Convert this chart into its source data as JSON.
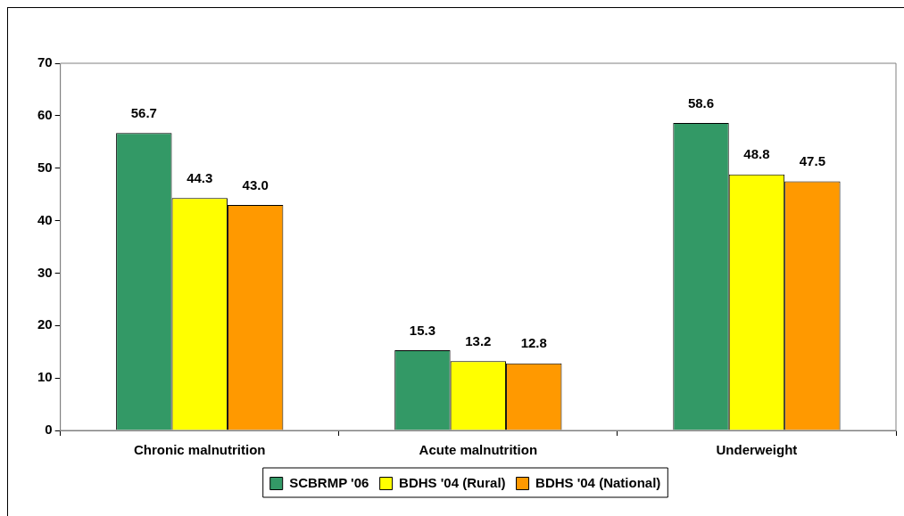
{
  "chart_data": {
    "type": "bar",
    "categories": [
      "Chronic malnutrition",
      "Acute malnutrition",
      "Underweight"
    ],
    "series": [
      {
        "name": "SCBRMP '06",
        "color": "#339966",
        "values": [
          56.7,
          15.3,
          58.6
        ],
        "value_labels": [
          "56.7",
          "15.3",
          "58.6"
        ]
      },
      {
        "name": "BDHS '04 (Rural)",
        "color": "#ffff00",
        "values": [
          44.3,
          13.2,
          48.8
        ],
        "value_labels": [
          "44.3",
          "13.2",
          "48.8"
        ]
      },
      {
        "name": "BDHS '04 (National)",
        "color": "#ff9900",
        "values": [
          43.0,
          12.8,
          47.5
        ],
        "value_labels": [
          "43.0",
          "12.8",
          "47.5"
        ]
      }
    ],
    "ylim": [
      0,
      70
    ],
    "yticks": [
      0,
      10,
      20,
      30,
      40,
      50,
      60,
      70
    ],
    "grid": false,
    "legend": "bottom"
  }
}
